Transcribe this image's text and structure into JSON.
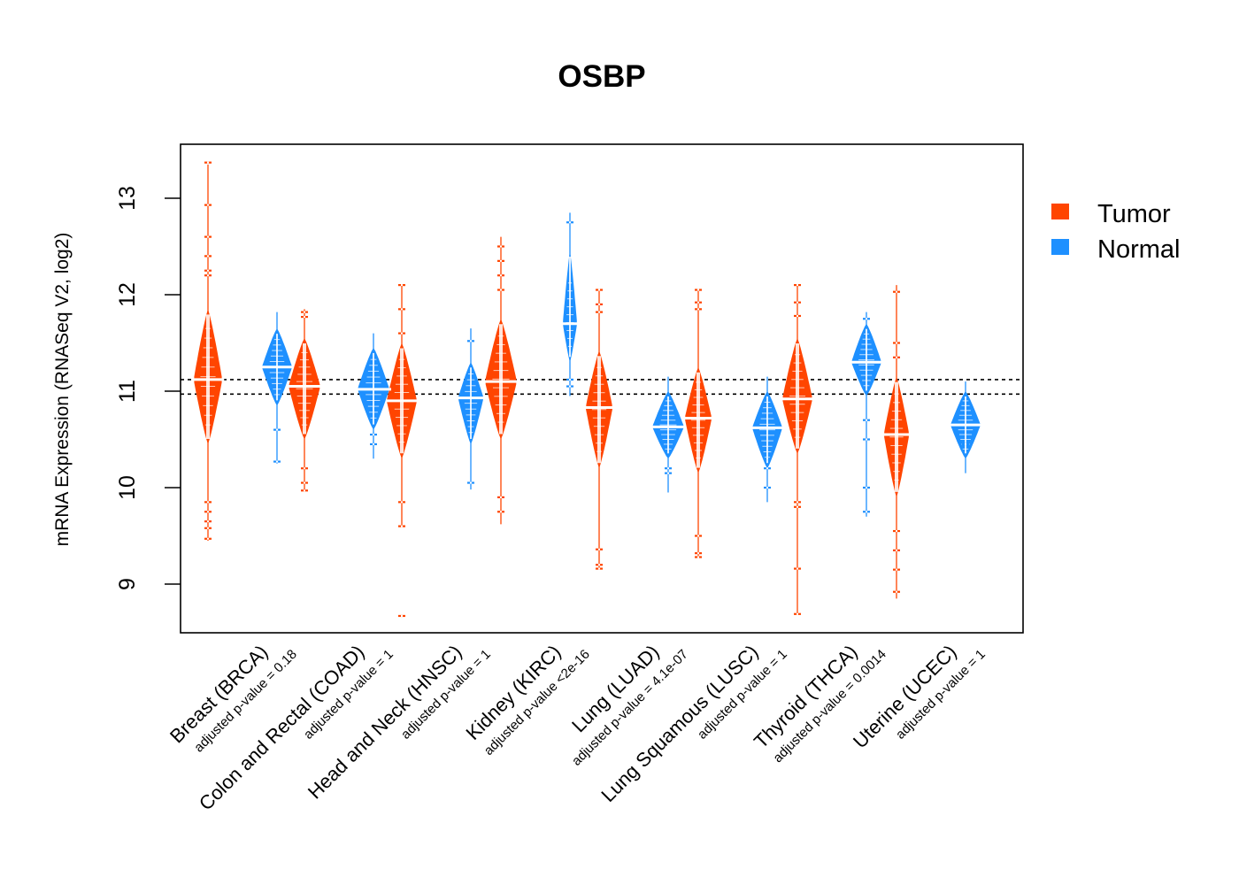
{
  "chart_data": {
    "type": "violin",
    "title": "OSBP",
    "xlabel": "",
    "ylabel": "mRNA Expression (RNASeq V2, log2)",
    "ylim": [
      8.5,
      13.55
    ],
    "yticks": [
      9,
      10,
      11,
      12,
      13
    ],
    "ytick_labels": [
      "9",
      "10",
      "11",
      "12",
      "13"
    ],
    "reference_lines": [
      11.12,
      10.97
    ],
    "grid": false,
    "legend": {
      "placement": "right",
      "entries": [
        {
          "label": "Tumor",
          "color": "#FF4500"
        },
        {
          "label": "Normal",
          "color": "#1E90FF"
        }
      ]
    },
    "categories": [
      {
        "label": "Breast (BRCA)",
        "pvalue_label": "adjusted p-value = 0.18"
      },
      {
        "label": "Colon and Rectal (COAD)",
        "pvalue_label": "adjusted p-value = 1"
      },
      {
        "label": "Head and Neck (HNSC)",
        "pvalue_label": "adjusted p-value = 1"
      },
      {
        "label": "Kidney (KIRC)",
        "pvalue_label": "adjusted p-value <2e-16"
      },
      {
        "label": "Lung (LUAD)",
        "pvalue_label": "adjusted p-value = 4.1e-07"
      },
      {
        "label": "Lung Squamous (LUSC)",
        "pvalue_label": "adjusted p-value = 1"
      },
      {
        "label": "Thyroid (THCA)",
        "pvalue_label": "adjusted p-value = 0.0014"
      },
      {
        "label": "Uterine (UCEC)",
        "pvalue_label": "adjusted p-value = 1"
      }
    ],
    "series": [
      {
        "name": "Tumor",
        "color": "#FF4500",
        "groups": [
          {
            "median": 11.12,
            "core_low": 10.45,
            "core_high": 11.85,
            "max_width": 0.9,
            "whisker_low": 9.45,
            "whisker_high": 13.35,
            "outliers": [
              13.37,
              12.93,
              12.6,
              12.4,
              12.25,
              12.2,
              9.85,
              9.75,
              9.65,
              9.58,
              9.47
            ]
          },
          {
            "median": 11.05,
            "core_low": 10.5,
            "core_high": 11.55,
            "max_width": 1.0,
            "whisker_low": 9.97,
            "whisker_high": 11.85,
            "outliers": [
              11.82,
              11.77,
              10.2,
              10.05,
              9.97
            ]
          },
          {
            "median": 10.9,
            "core_low": 10.3,
            "core_high": 11.5,
            "max_width": 0.95,
            "whisker_low": 9.6,
            "whisker_high": 12.1,
            "outliers": [
              12.1,
              11.85,
              11.6,
              9.85,
              9.6,
              8.67
            ]
          },
          {
            "median": 11.1,
            "core_low": 10.5,
            "core_high": 11.75,
            "max_width": 1.0,
            "whisker_low": 9.62,
            "whisker_high": 12.6,
            "outliers": [
              12.5,
              12.35,
              12.2,
              12.05,
              9.9,
              9.75
            ]
          },
          {
            "median": 10.83,
            "core_low": 10.2,
            "core_high": 11.42,
            "max_width": 0.85,
            "whisker_low": 9.15,
            "whisker_high": 12.05,
            "outliers": [
              12.05,
              11.9,
              11.82,
              9.36,
              9.2,
              9.16
            ]
          },
          {
            "median": 10.72,
            "core_low": 10.15,
            "core_high": 11.25,
            "max_width": 0.85,
            "whisker_low": 9.28,
            "whisker_high": 12.05,
            "outliers": [
              12.05,
              11.92,
              11.85,
              9.5,
              9.32,
              9.28
            ]
          },
          {
            "median": 10.92,
            "core_low": 10.35,
            "core_high": 11.55,
            "max_width": 0.95,
            "whisker_low": 8.68,
            "whisker_high": 12.1,
            "outliers": [
              12.1,
              11.92,
              11.78,
              9.85,
              9.8,
              9.16,
              8.69
            ]
          },
          {
            "median": 10.55,
            "core_low": 9.9,
            "core_high": 11.15,
            "max_width": 0.8,
            "whisker_low": 8.85,
            "whisker_high": 12.1,
            "outliers": [
              12.03,
              11.5,
              11.35,
              9.55,
              9.35,
              9.15,
              8.92
            ]
          }
        ]
      },
      {
        "name": "Normal",
        "color": "#1E90FF",
        "groups": [
          {
            "median": 11.25,
            "core_low": 10.85,
            "core_high": 11.65,
            "max_width": 0.95,
            "whisker_low": 10.25,
            "whisker_high": 11.82,
            "outliers": [
              10.6,
              10.27
            ]
          },
          {
            "median": 11.02,
            "core_low": 10.6,
            "core_high": 11.45,
            "max_width": 1.0,
            "whisker_low": 10.3,
            "whisker_high": 11.6,
            "outliers": [
              10.55,
              10.45
            ]
          },
          {
            "median": 10.93,
            "core_low": 10.45,
            "core_high": 11.3,
            "max_width": 0.8,
            "whisker_low": 9.98,
            "whisker_high": 11.65,
            "outliers": [
              11.52,
              10.05
            ]
          },
          {
            "median": 11.7,
            "core_low": 11.3,
            "core_high": 12.45,
            "max_width": 0.45,
            "whisker_low": 10.95,
            "whisker_high": 12.85,
            "outliers": [
              12.75,
              11.12,
              11.05
            ]
          },
          {
            "median": 10.63,
            "core_low": 10.3,
            "core_high": 11.0,
            "max_width": 1.0,
            "whisker_low": 9.95,
            "whisker_high": 11.15,
            "outliers": [
              10.2,
              10.15
            ]
          },
          {
            "median": 10.62,
            "core_low": 10.2,
            "core_high": 11.0,
            "max_width": 0.95,
            "whisker_low": 9.85,
            "whisker_high": 11.15,
            "outliers": [
              10.3,
              10.2,
              10.0
            ]
          },
          {
            "median": 11.3,
            "core_low": 10.95,
            "core_high": 11.7,
            "max_width": 0.95,
            "whisker_low": 9.7,
            "whisker_high": 11.82,
            "outliers": [
              11.75,
              10.7,
              10.5,
              10.0,
              9.75
            ]
          },
          {
            "median": 10.65,
            "core_low": 10.3,
            "core_high": 11.0,
            "max_width": 0.95,
            "whisker_low": 10.15,
            "whisker_high": 11.1,
            "outliers": [
              10.45
            ]
          }
        ]
      }
    ]
  }
}
